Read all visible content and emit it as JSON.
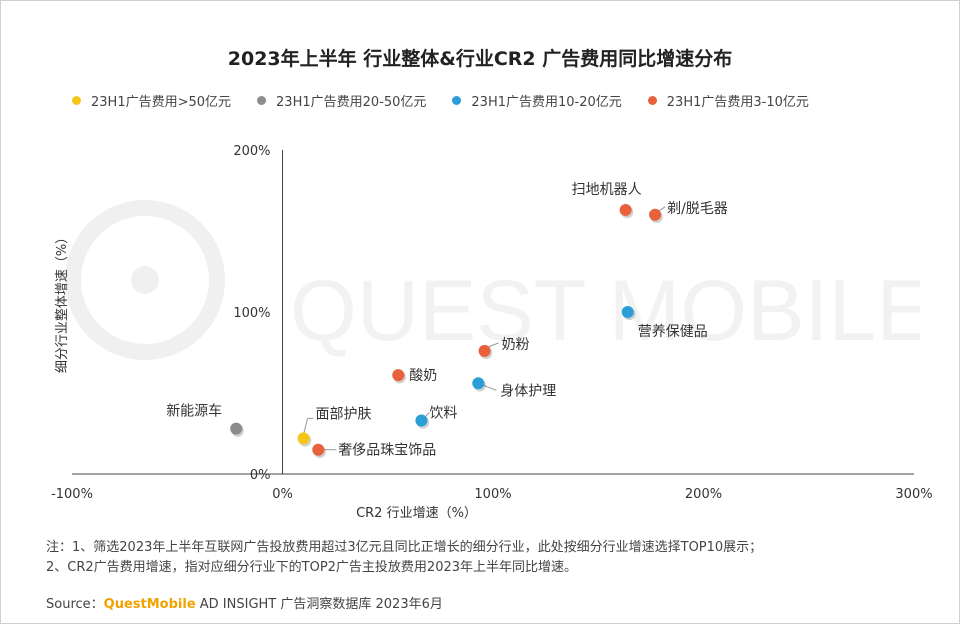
{
  "title": "2023年上半年 行业整体&行业CR2 广告费用同比增速分布",
  "colors": {
    "series_gt50": "#f5c518",
    "series_20_50": "#8c8c8c",
    "series_10_20": "#2b9ed8",
    "series_3_10": "#e8603c"
  },
  "chart_data": {
    "type": "scatter",
    "xlabel": "CR2 行业增速（%）",
    "ylabel": "细分行业整体增速（%）",
    "xlim": [
      -100,
      300
    ],
    "ylim": [
      0,
      200
    ],
    "xticks": [
      "-100%",
      "0%",
      "100%",
      "200%",
      "300%"
    ],
    "yticks": [
      "0%",
      "100%",
      "200%"
    ],
    "grid": false,
    "legend_position": "top",
    "series": [
      {
        "name": "23H1广告费用>50亿元",
        "color": "#f5c518",
        "points": [
          {
            "label": "面部护肤",
            "x": 10,
            "y": 22
          }
        ]
      },
      {
        "name": "23H1广告费用20-50亿元",
        "color": "#8c8c8c",
        "points": [
          {
            "label": "新能源车",
            "x": -22,
            "y": 28
          }
        ]
      },
      {
        "name": "23H1广告费用10-20亿元",
        "color": "#2b9ed8",
        "points": [
          {
            "label": "营养保健品",
            "x": 164,
            "y": 100
          },
          {
            "label": "身体护理",
            "x": 93,
            "y": 56
          },
          {
            "label": "饮料",
            "x": 66,
            "y": 33
          }
        ]
      },
      {
        "name": "23H1广告费用3-10亿元",
        "color": "#e8603c",
        "points": [
          {
            "label": "扫地机器人",
            "x": 163,
            "y": 163
          },
          {
            "label": "剃/脱毛器",
            "x": 177,
            "y": 160
          },
          {
            "label": "奶粉",
            "x": 96,
            "y": 76
          },
          {
            "label": "酸奶",
            "x": 55,
            "y": 61
          },
          {
            "label": "奢侈品珠宝饰品",
            "x": 17,
            "y": 15
          }
        ]
      }
    ]
  },
  "footnotes": [
    "注：1、筛选2023年上半年互联网广告投放费用超过3亿元且同比正增长的细分行业，此处按细分行业增速选择TOP10展示；",
    "2、CR2广告费用增速，指对应细分行业下的TOP2广告主投放费用2023年上半年同比增速。"
  ],
  "source": {
    "prefix": "Source：",
    "brand": "QuestMobile",
    "rest": " AD INSIGHT 广告洞察数据库 2023年6月"
  },
  "watermark": "QUEST MOBILE"
}
